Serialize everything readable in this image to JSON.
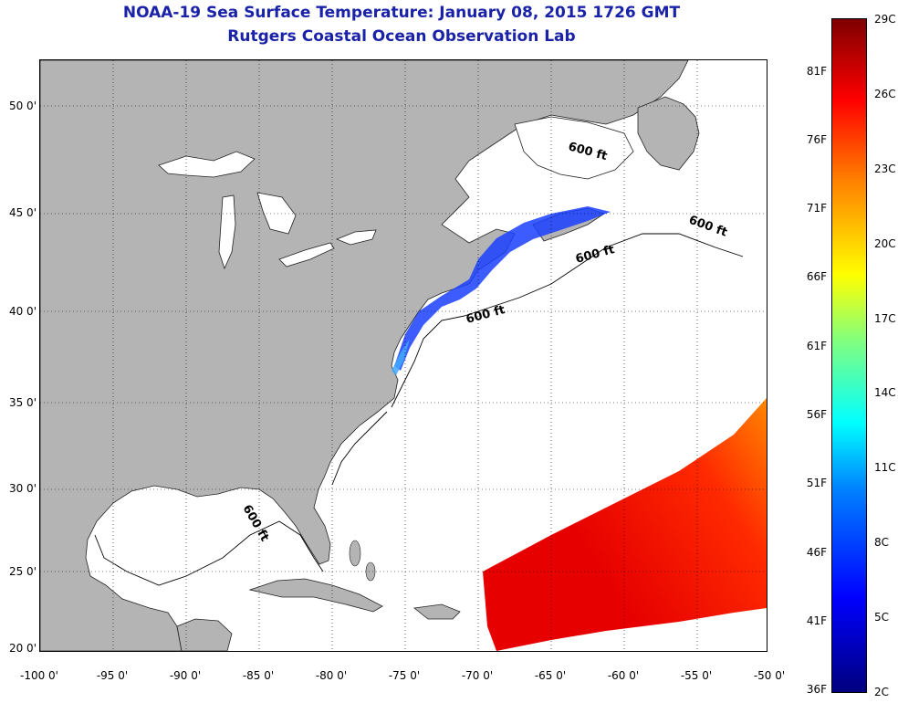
{
  "header": {
    "title": "NOAA-19 Sea Surface Temperature:  January 08, 2015 1726 GMT",
    "subtitle": "Rutgers Coastal Ocean Observation Lab"
  },
  "map": {
    "lon_range": [
      -100,
      -50
    ],
    "lat_range": [
      20,
      52.5
    ],
    "lat_ticks": [
      "20 0'",
      "25 0'",
      "30 0'",
      "35 0'",
      "40 0'",
      "45 0'",
      "50 0'"
    ],
    "lon_ticks": [
      "-100 0'",
      "-95 0'",
      "-90 0'",
      "-85 0'",
      "-80 0'",
      "-75 0'",
      "-70 0'",
      "-65 0'",
      "-60 0'",
      "-55 0'",
      "-50 0'"
    ],
    "contour_labels": [
      "600 ft",
      "600 ft",
      "600 ft",
      "600 ft",
      "600 ft"
    ],
    "land_color": "#b4b4b4",
    "ocean_color": "#ffffff",
    "grid": "dotted"
  },
  "colorbar": {
    "celsius_labels": [
      "29C",
      "26C",
      "23C",
      "20C",
      "17C",
      "14C",
      "11C",
      "8C",
      "5C",
      "2C"
    ],
    "fahrenheit_labels": [
      "81F",
      "76F",
      "71F",
      "66F",
      "61F",
      "56F",
      "51F",
      "46F",
      "41F",
      "36F"
    ],
    "range_c": [
      2,
      29
    ]
  }
}
